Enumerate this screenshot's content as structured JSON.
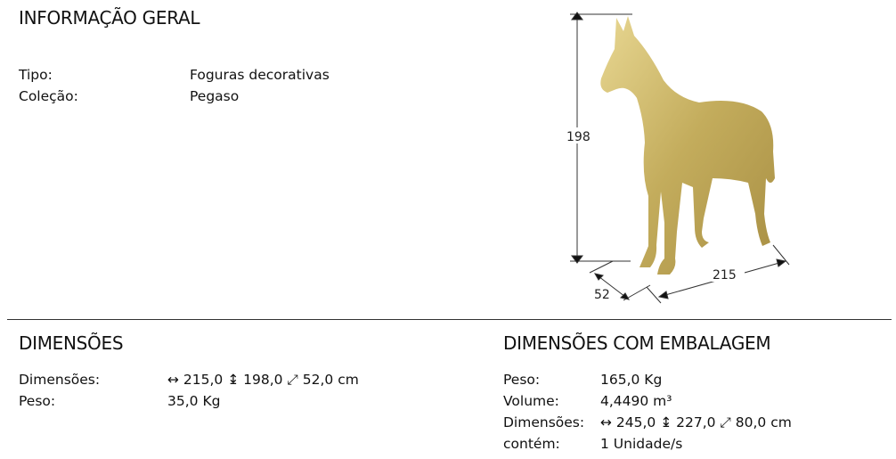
{
  "general": {
    "title": "INFORMAÇÃO GERAL",
    "rows": [
      {
        "label": "Tipo:",
        "value": "Foguras decorativas"
      },
      {
        "label": "Coleção:",
        "value": "Pegaso"
      }
    ]
  },
  "product_image": {
    "height_label": "198",
    "depth_label": "52",
    "width_label": "215",
    "color": "#c9b46a"
  },
  "dimensions": {
    "title": "DIMENSÕES",
    "rows": [
      {
        "label": "Dimensões:",
        "value": "↔ 215,0 ↨ 198,0 ⤢ 52,0 cm"
      },
      {
        "label": "Peso:",
        "value": "35,0 Kg"
      }
    ]
  },
  "packaging": {
    "title": "DIMENSÕES COM EMBALAGEM",
    "rows": [
      {
        "label": "Peso:",
        "value": "165,0 Kg"
      },
      {
        "label": "Volume:",
        "value": "4,4490 m³"
      },
      {
        "label": "Dimensões:",
        "value": "↔ 245,0 ↨ 227,0 ⤢ 80,0 cm"
      },
      {
        "label": "contém:",
        "value": "1 Unidade/s"
      }
    ]
  }
}
